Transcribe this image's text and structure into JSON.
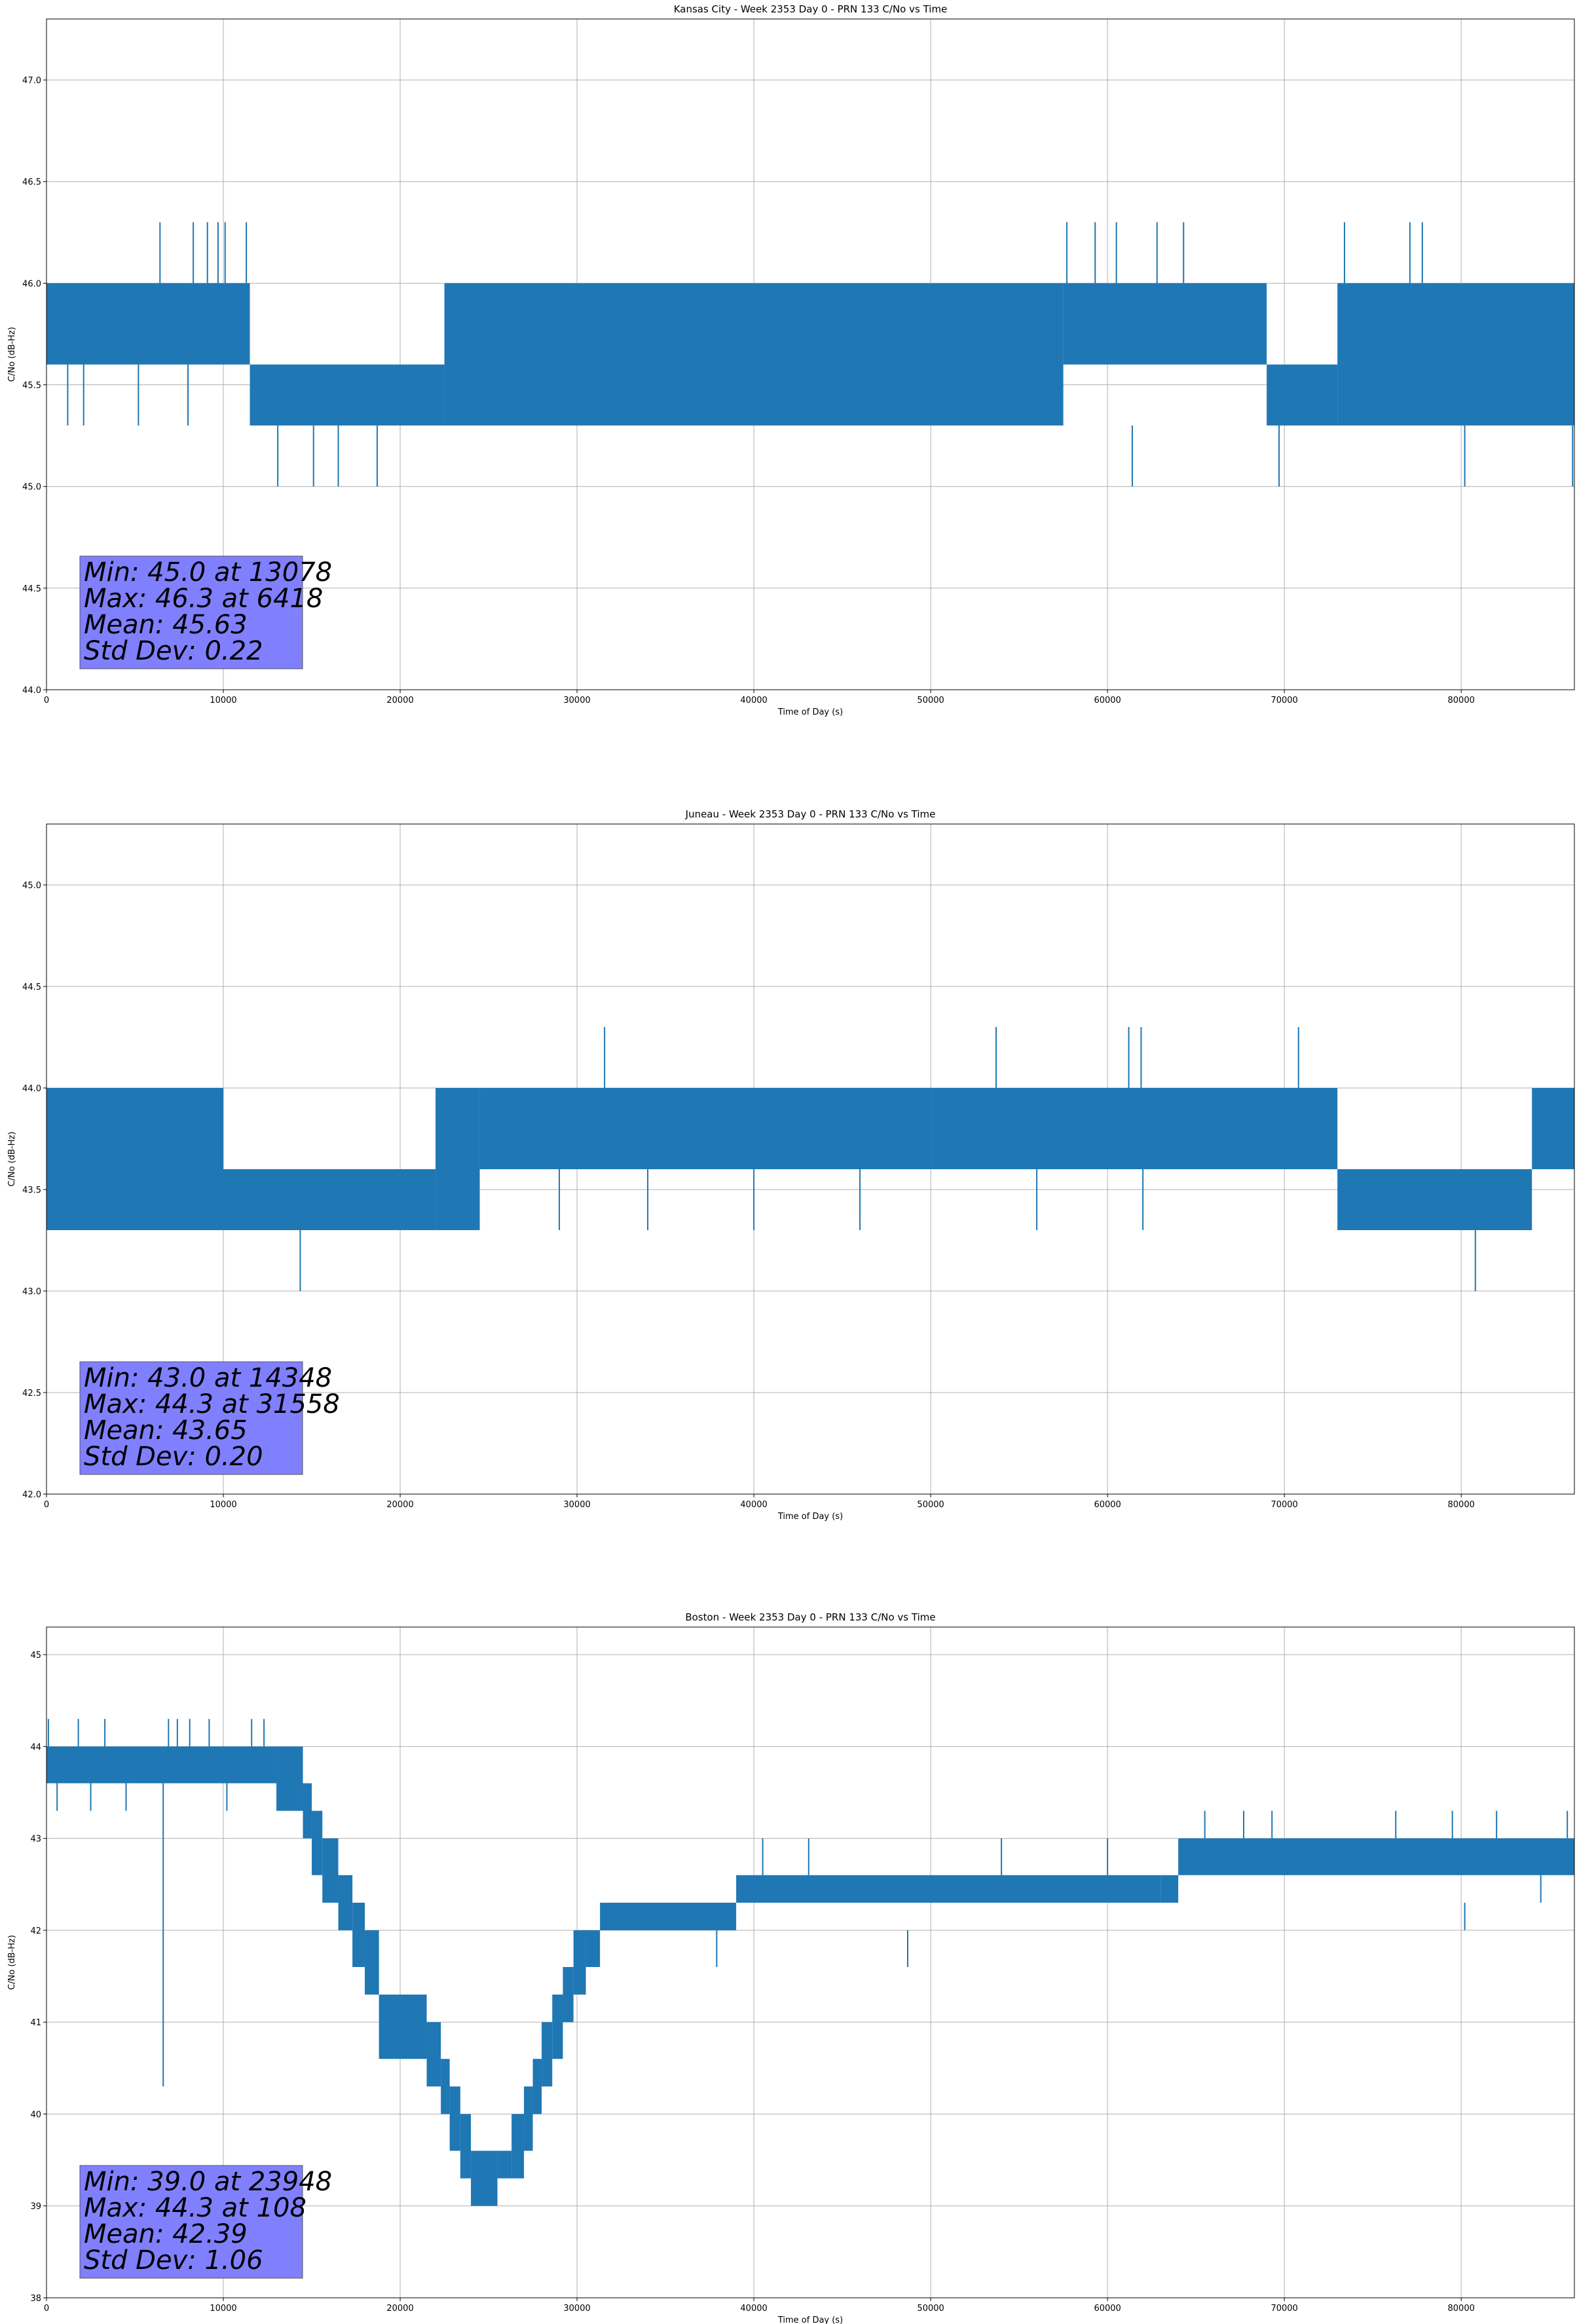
{
  "figure": {
    "background": "#ffffff",
    "series_color": "#1f77b4",
    "stats_box_color": "#8080ff",
    "grid_color": "#b0b0b0"
  },
  "chart_data": [
    {
      "type": "line",
      "title": "Kansas City - Week 2353 Day 0 - PRN 133 C/No vs Time",
      "xlabel": "Time of Day (s)",
      "ylabel": "C/No (dB-Hz)",
      "xlim": [
        0,
        86400
      ],
      "ylim": [
        44.0,
        47.3
      ],
      "xticks": [
        0,
        10000,
        20000,
        30000,
        40000,
        50000,
        60000,
        70000,
        80000
      ],
      "yticks": [
        44.0,
        44.5,
        45.0,
        45.5,
        46.0,
        46.5,
        47.0
      ],
      "ytick_decimals": 1,
      "grid": true,
      "stats": [
        "Min: 45.0 at 13078",
        "Max: 46.3 at 6418",
        "Mean: 45.63",
        "Std Dev: 0.22"
      ],
      "bands": [
        {
          "x": [
            0,
            11500
          ],
          "values": [
            45.6,
            46.0
          ]
        },
        {
          "x": [
            11500,
            22500
          ],
          "values": [
            45.3,
            45.6
          ]
        },
        {
          "x": [
            22500,
            57500
          ],
          "values": [
            45.3,
            46.0
          ]
        },
        {
          "x": [
            57500,
            69000
          ],
          "values": [
            45.6,
            46.0
          ]
        },
        {
          "x": [
            69000,
            73000
          ],
          "values": [
            45.3,
            45.6
          ]
        },
        {
          "x": [
            73000,
            86400
          ],
          "values": [
            45.3,
            46.0
          ]
        }
      ],
      "spikes": [
        {
          "x": 1200,
          "values": [
            45.3,
            45.6
          ]
        },
        {
          "x": 2100,
          "values": [
            45.3,
            45.6
          ]
        },
        {
          "x": 5200,
          "values": [
            45.3,
            45.6
          ]
        },
        {
          "x": 8000,
          "values": [
            45.3,
            45.6
          ]
        },
        {
          "x": 6418,
          "values": [
            46.0,
            46.3
          ]
        },
        {
          "x": 8300,
          "values": [
            46.0,
            46.3
          ]
        },
        {
          "x": 9100,
          "values": [
            46.0,
            46.3
          ]
        },
        {
          "x": 9700,
          "values": [
            46.0,
            46.3
          ]
        },
        {
          "x": 10100,
          "values": [
            46.0,
            46.3
          ]
        },
        {
          "x": 11300,
          "values": [
            46.0,
            46.3
          ]
        },
        {
          "x": 13078,
          "values": [
            45.0,
            45.3
          ]
        },
        {
          "x": 15100,
          "values": [
            45.0,
            45.3
          ]
        },
        {
          "x": 16500,
          "values": [
            45.0,
            45.3
          ]
        },
        {
          "x": 18700,
          "values": [
            45.0,
            45.3
          ]
        },
        {
          "x": 57700,
          "values": [
            46.0,
            46.3
          ]
        },
        {
          "x": 59300,
          "values": [
            46.0,
            46.3
          ]
        },
        {
          "x": 60500,
          "values": [
            46.0,
            46.3
          ]
        },
        {
          "x": 61400,
          "values": [
            45.0,
            45.3
          ]
        },
        {
          "x": 62800,
          "values": [
            46.0,
            46.3
          ]
        },
        {
          "x": 64300,
          "values": [
            46.0,
            46.3
          ]
        },
        {
          "x": 69700,
          "values": [
            45.0,
            45.3
          ]
        },
        {
          "x": 73400,
          "values": [
            46.0,
            46.3
          ]
        },
        {
          "x": 77100,
          "values": [
            46.0,
            46.3
          ]
        },
        {
          "x": 77800,
          "values": [
            46.0,
            46.3
          ]
        },
        {
          "x": 80200,
          "values": [
            45.0,
            45.3
          ]
        },
        {
          "x": 86300,
          "values": [
            45.0,
            45.3
          ]
        }
      ]
    },
    {
      "type": "line",
      "title": "Juneau - Week 2353 Day 0 - PRN 133 C/No vs Time",
      "xlabel": "Time of Day (s)",
      "ylabel": "C/No (dB-Hz)",
      "xlim": [
        0,
        86400
      ],
      "ylim": [
        42.0,
        45.3
      ],
      "xticks": [
        0,
        10000,
        20000,
        30000,
        40000,
        50000,
        60000,
        70000,
        80000
      ],
      "yticks": [
        42.0,
        42.5,
        43.0,
        43.5,
        44.0,
        44.5,
        45.0
      ],
      "ytick_decimals": 1,
      "grid": true,
      "stats": [
        "Min: 43.0 at 14348",
        "Max: 44.3 at 31558",
        "Mean: 43.65",
        "Std Dev: 0.20"
      ],
      "bands": [
        {
          "x": [
            0,
            10000
          ],
          "values": [
            43.3,
            44.0
          ]
        },
        {
          "x": [
            10000,
            22000
          ],
          "values": [
            43.3,
            43.6
          ]
        },
        {
          "x": [
            22000,
            24500
          ],
          "values": [
            43.3,
            44.0
          ]
        },
        {
          "x": [
            24500,
            50000
          ],
          "values": [
            43.6,
            44.0
          ]
        },
        {
          "x": [
            50000,
            73000
          ],
          "values": [
            43.6,
            44.0
          ]
        },
        {
          "x": [
            73000,
            84000
          ],
          "values": [
            43.3,
            43.6
          ]
        },
        {
          "x": [
            84000,
            86400
          ],
          "values": [
            43.6,
            44.0
          ]
        }
      ],
      "spikes": [
        {
          "x": 14348,
          "values": [
            43.0,
            43.3
          ]
        },
        {
          "x": 31558,
          "values": [
            44.0,
            44.3
          ]
        },
        {
          "x": 53700,
          "values": [
            44.0,
            44.3
          ]
        },
        {
          "x": 61200,
          "values": [
            44.0,
            44.3
          ]
        },
        {
          "x": 61900,
          "values": [
            44.0,
            44.3
          ]
        },
        {
          "x": 70800,
          "values": [
            44.0,
            44.3
          ]
        },
        {
          "x": 80800,
          "values": [
            43.0,
            43.3
          ]
        },
        {
          "x": 29000,
          "values": [
            43.3,
            43.6
          ]
        },
        {
          "x": 34000,
          "values": [
            43.3,
            43.6
          ]
        },
        {
          "x": 40000,
          "values": [
            43.3,
            43.6
          ]
        },
        {
          "x": 46000,
          "values": [
            43.3,
            43.6
          ]
        },
        {
          "x": 56000,
          "values": [
            43.3,
            43.6
          ]
        },
        {
          "x": 62000,
          "values": [
            43.3,
            43.6
          ]
        }
      ]
    },
    {
      "type": "line",
      "title": "Boston - Week 2353 Day 0 - PRN 133 C/No vs Time",
      "xlabel": "Time of Day (s)",
      "ylabel": "C/No (dB-Hz)",
      "xlim": [
        0,
        86400
      ],
      "ylim": [
        38.0,
        45.3
      ],
      "xticks": [
        0,
        10000,
        20000,
        30000,
        40000,
        50000,
        60000,
        70000,
        80000
      ],
      "yticks": [
        38,
        39,
        40,
        41,
        42,
        43,
        44,
        45
      ],
      "ytick_decimals": 0,
      "grid": true,
      "stats": [
        "Min: 39.0 at 23948",
        "Max: 44.3 at 108",
        "Mean: 42.39",
        "Std Dev: 1.06"
      ],
      "bands": [
        {
          "x": [
            0,
            13000
          ],
          "values": [
            43.6,
            44.0
          ]
        },
        {
          "x": [
            13000,
            14500
          ],
          "values": [
            43.3,
            44.0
          ]
        },
        {
          "x": [
            14500,
            15000
          ],
          "values": [
            43.0,
            43.6
          ]
        },
        {
          "x": [
            15000,
            15600
          ],
          "values": [
            42.6,
            43.3
          ]
        },
        {
          "x": [
            15600,
            16500
          ],
          "values": [
            42.3,
            43.0
          ]
        },
        {
          "x": [
            16500,
            17300
          ],
          "values": [
            42.0,
            42.6
          ]
        },
        {
          "x": [
            17300,
            18000
          ],
          "values": [
            41.6,
            42.3
          ]
        },
        {
          "x": [
            18000,
            18800
          ],
          "values": [
            41.3,
            42.0
          ]
        },
        {
          "x": [
            18800,
            20000
          ],
          "values": [
            40.6,
            41.3
          ]
        },
        {
          "x": [
            20000,
            21500
          ],
          "values": [
            40.6,
            41.3
          ]
        },
        {
          "x": [
            21500,
            22300
          ],
          "values": [
            40.3,
            41.0
          ]
        },
        {
          "x": [
            22300,
            22800
          ],
          "values": [
            40.0,
            40.6
          ]
        },
        {
          "x": [
            22800,
            23400
          ],
          "values": [
            39.6,
            40.3
          ]
        },
        {
          "x": [
            23400,
            24000
          ],
          "values": [
            39.3,
            40.0
          ]
        },
        {
          "x": [
            24000,
            25500
          ],
          "values": [
            39.0,
            39.6
          ]
        },
        {
          "x": [
            25500,
            26300
          ],
          "values": [
            39.3,
            39.6
          ]
        },
        {
          "x": [
            26300,
            27000
          ],
          "values": [
            39.3,
            40.0
          ]
        },
        {
          "x": [
            27000,
            27500
          ],
          "values": [
            39.6,
            40.3
          ]
        },
        {
          "x": [
            27500,
            28000
          ],
          "values": [
            40.0,
            40.6
          ]
        },
        {
          "x": [
            28000,
            28600
          ],
          "values": [
            40.3,
            41.0
          ]
        },
        {
          "x": [
            28600,
            29200
          ],
          "values": [
            40.6,
            41.3
          ]
        },
        {
          "x": [
            29200,
            29800
          ],
          "values": [
            41.0,
            41.6
          ]
        },
        {
          "x": [
            29800,
            30500
          ],
          "values": [
            41.3,
            42.0
          ]
        },
        {
          "x": [
            30500,
            31300
          ],
          "values": [
            41.6,
            42.0
          ]
        },
        {
          "x": [
            31300,
            39000
          ],
          "values": [
            42.0,
            42.3
          ]
        },
        {
          "x": [
            39000,
            63000
          ],
          "values": [
            42.3,
            42.6
          ]
        },
        {
          "x": [
            63000,
            64000
          ],
          "values": [
            42.3,
            42.6
          ]
        },
        {
          "x": [
            64000,
            86400
          ],
          "values": [
            42.6,
            43.0
          ]
        }
      ],
      "spikes": [
        {
          "x": 108,
          "values": [
            44.0,
            44.3
          ]
        },
        {
          "x": 600,
          "values": [
            43.3,
            43.6
          ]
        },
        {
          "x": 1800,
          "values": [
            44.0,
            44.3
          ]
        },
        {
          "x": 2500,
          "values": [
            43.3,
            43.6
          ]
        },
        {
          "x": 3300,
          "values": [
            44.0,
            44.3
          ]
        },
        {
          "x": 4500,
          "values": [
            43.3,
            43.6
          ]
        },
        {
          "x": 6600,
          "values": [
            40.3,
            43.6
          ]
        },
        {
          "x": 6900,
          "values": [
            44.0,
            44.3
          ]
        },
        {
          "x": 7400,
          "values": [
            44.0,
            44.3
          ]
        },
        {
          "x": 8100,
          "values": [
            44.0,
            44.3
          ]
        },
        {
          "x": 9200,
          "values": [
            44.0,
            44.3
          ]
        },
        {
          "x": 10200,
          "values": [
            43.3,
            43.6
          ]
        },
        {
          "x": 11600,
          "values": [
            44.0,
            44.3
          ]
        },
        {
          "x": 12300,
          "values": [
            44.0,
            44.3
          ]
        },
        {
          "x": 37900,
          "values": [
            41.6,
            42.0
          ]
        },
        {
          "x": 40500,
          "values": [
            42.6,
            43.0
          ]
        },
        {
          "x": 43100,
          "values": [
            42.6,
            43.0
          ]
        },
        {
          "x": 48700,
          "values": [
            41.6,
            42.0
          ]
        },
        {
          "x": 54000,
          "values": [
            42.6,
            43.0
          ]
        },
        {
          "x": 60000,
          "values": [
            42.6,
            43.0
          ]
        },
        {
          "x": 65500,
          "values": [
            43.0,
            43.3
          ]
        },
        {
          "x": 67700,
          "values": [
            43.0,
            43.3
          ]
        },
        {
          "x": 69300,
          "values": [
            43.0,
            43.3
          ]
        },
        {
          "x": 76300,
          "values": [
            43.0,
            43.3
          ]
        },
        {
          "x": 79500,
          "values": [
            43.0,
            43.3
          ]
        },
        {
          "x": 80200,
          "values": [
            42.0,
            42.3
          ]
        },
        {
          "x": 82000,
          "values": [
            43.0,
            43.3
          ]
        },
        {
          "x": 84500,
          "values": [
            42.3,
            42.6
          ]
        },
        {
          "x": 86000,
          "values": [
            43.0,
            43.3
          ]
        }
      ]
    }
  ]
}
